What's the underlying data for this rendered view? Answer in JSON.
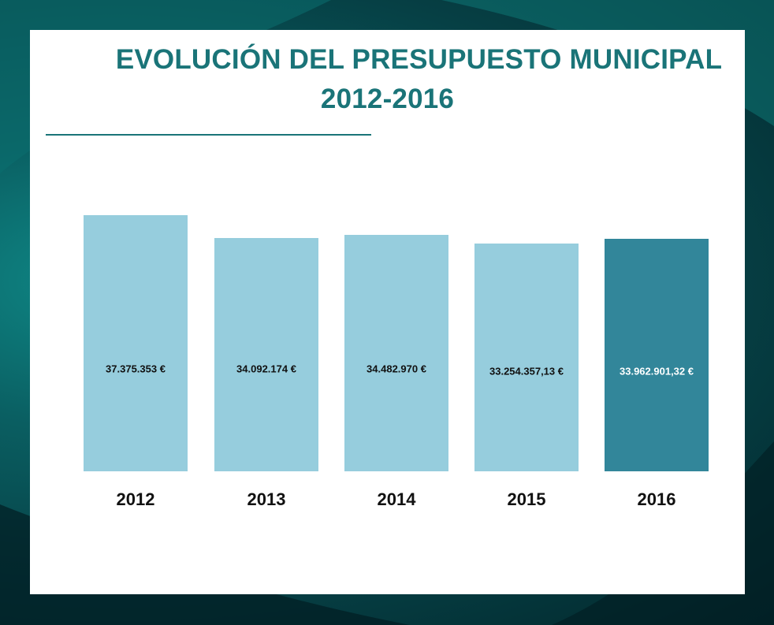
{
  "colors": {
    "title": "#1a7478",
    "bar": "#96cddd",
    "bar_highlight": "#32869a",
    "frame_dark": "#063f44"
  },
  "chart_data": {
    "type": "bar",
    "title": "EVOLUCIÓN DEL PRESUPUESTO MUNICIPAL",
    "subtitle": "2012-2016",
    "categories": [
      "2012",
      "2013",
      "2014",
      "2015",
      "2016"
    ],
    "values": [
      37375353,
      34092174,
      34482970,
      33254357.13,
      33962901.32
    ],
    "data_labels": [
      "37.375.353 €",
      "34.092.174 €",
      "34.482.970 €",
      "33.254.357,13 €",
      "33.962.901,32 €"
    ],
    "highlight_index": 4,
    "xlabel": "",
    "ylabel": "",
    "grid": false,
    "legend": "none"
  }
}
